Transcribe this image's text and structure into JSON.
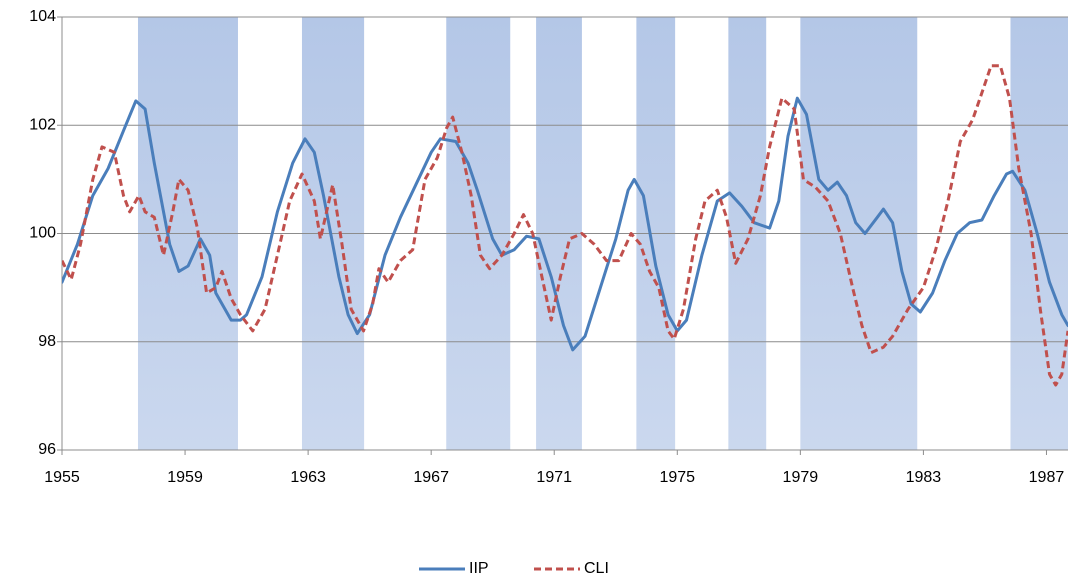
{
  "chart_data": {
    "type": "line",
    "xlim": [
      1955,
      1987.7
    ],
    "xticks": [
      1955,
      1959,
      1963,
      1967,
      1971,
      1975,
      1979,
      1983,
      1987
    ],
    "ylim": [
      96,
      104
    ],
    "yticks": [
      96,
      98,
      100,
      102,
      104
    ],
    "grid": true,
    "shading": [
      [
        1957.47,
        1960.72
      ],
      [
        1962.8,
        1964.82
      ],
      [
        1967.49,
        1969.57
      ],
      [
        1970.41,
        1971.9
      ],
      [
        1973.67,
        1974.93
      ],
      [
        1976.66,
        1977.89
      ],
      [
        1979.0,
        1982.8
      ],
      [
        1985.83,
        1987.7
      ]
    ],
    "shading_color": "#b4c7e7",
    "legend": "bottom",
    "series": [
      {
        "name": "IIP",
        "color": "#4a7ebb",
        "dash": false,
        "x": [
          1955,
          1955.5,
          1956,
          1956.5,
          1957,
          1957.4,
          1957.7,
          1958,
          1958.5,
          1958.8,
          1959.1,
          1959.5,
          1959.8,
          1960,
          1960.5,
          1960.8,
          1961,
          1961.5,
          1962,
          1962.5,
          1962.9,
          1963.2,
          1963.5,
          1964,
          1964.3,
          1964.6,
          1965,
          1965.5,
          1966,
          1966.5,
          1967,
          1967.3,
          1967.8,
          1968.2,
          1968.5,
          1969,
          1969.3,
          1969.7,
          1970.1,
          1970.5,
          1970.9,
          1971.3,
          1971.6,
          1972,
          1972.5,
          1973,
          1973.4,
          1973.6,
          1973.9,
          1974.3,
          1974.7,
          1975,
          1975.3,
          1975.8,
          1976.3,
          1976.7,
          1977.1,
          1977.5,
          1978,
          1978.3,
          1978.6,
          1978.9,
          1979.2,
          1979.6,
          1979.9,
          1980.2,
          1980.5,
          1980.8,
          1981.1,
          1981.5,
          1981.7,
          1982,
          1982.3,
          1982.6,
          1982.9,
          1983.3,
          1983.7,
          1984.1,
          1984.5,
          1984.9,
          1985.3,
          1985.7,
          1985.9,
          1986.3,
          1986.7,
          1987.1,
          1987.5,
          1987.7
        ],
        "values": [
          99.1,
          99.8,
          100.7,
          101.2,
          101.9,
          102.45,
          102.3,
          101.3,
          99.8,
          99.3,
          99.4,
          99.9,
          99.6,
          98.9,
          98.4,
          98.4,
          98.5,
          99.2,
          100.4,
          101.3,
          101.75,
          101.5,
          100.7,
          99.2,
          98.5,
          98.15,
          98.5,
          99.6,
          100.3,
          100.9,
          101.5,
          101.75,
          101.7,
          101.3,
          100.8,
          99.9,
          99.6,
          99.7,
          99.95,
          99.9,
          99.2,
          98.3,
          97.85,
          98.1,
          99.0,
          99.9,
          100.8,
          101.0,
          100.7,
          99.4,
          98.5,
          98.2,
          98.4,
          99.6,
          100.6,
          100.75,
          100.5,
          100.2,
          100.1,
          100.6,
          101.8,
          102.5,
          102.2,
          101.0,
          100.8,
          100.95,
          100.7,
          100.2,
          100.0,
          100.3,
          100.45,
          100.2,
          99.3,
          98.7,
          98.55,
          98.9,
          99.5,
          100.0,
          100.2,
          100.25,
          100.7,
          101.1,
          101.15,
          100.8,
          100.0,
          99.1,
          98.5,
          98.3
        ]
      },
      {
        "name": "CLI",
        "color": "#c0504d",
        "dash": true,
        "x": [
          1955,
          1955.3,
          1955.6,
          1956,
          1956.3,
          1956.7,
          1957,
          1957.2,
          1957.5,
          1957.7,
          1958,
          1958.3,
          1958.6,
          1958.8,
          1959.1,
          1959.4,
          1959.7,
          1960,
          1960.2,
          1960.5,
          1960.8,
          1961.2,
          1961.6,
          1962,
          1962.4,
          1962.8,
          1963.2,
          1963.4,
          1963.8,
          1964.1,
          1964.4,
          1964.8,
          1965.1,
          1965.3,
          1965.6,
          1966,
          1966.4,
          1966.8,
          1967.2,
          1967.5,
          1967.7,
          1968,
          1968.3,
          1968.6,
          1968.9,
          1969.3,
          1969.7,
          1970,
          1970.3,
          1970.6,
          1970.9,
          1971.2,
          1971.5,
          1971.9,
          1972.3,
          1972.7,
          1973.1,
          1973.5,
          1973.8,
          1974.1,
          1974.4,
          1974.7,
          1974.9,
          1975.2,
          1975.6,
          1975.9,
          1976.3,
          1976.6,
          1976.9,
          1977.3,
          1977.7,
          1978,
          1978.4,
          1978.8,
          1979.1,
          1979.5,
          1979.9,
          1980.3,
          1980.7,
          1981,
          1981.3,
          1981.7,
          1982,
          1982.5,
          1983,
          1983.4,
          1983.8,
          1984.2,
          1984.6,
          1984.9,
          1985.2,
          1985.5,
          1985.8,
          1986.1,
          1986.5,
          1986.8,
          1987.1,
          1987.3,
          1987.5,
          1987.7
        ],
        "values": [
          99.5,
          99.15,
          99.8,
          101.0,
          101.6,
          101.5,
          100.7,
          100.4,
          100.7,
          100.4,
          100.3,
          99.6,
          100.4,
          101.0,
          100.8,
          100.1,
          98.9,
          99.0,
          99.3,
          98.8,
          98.5,
          98.2,
          98.6,
          99.6,
          100.6,
          101.1,
          100.6,
          99.9,
          100.9,
          99.8,
          98.6,
          98.2,
          98.7,
          99.35,
          99.1,
          99.5,
          99.7,
          101.0,
          101.4,
          101.95,
          102.15,
          101.5,
          100.7,
          99.6,
          99.35,
          99.6,
          100.0,
          100.35,
          100.0,
          99.2,
          98.4,
          99.2,
          99.9,
          100.0,
          99.8,
          99.5,
          99.5,
          100.0,
          99.8,
          99.3,
          99.0,
          98.2,
          98.05,
          98.6,
          99.9,
          100.6,
          100.8,
          100.3,
          99.45,
          99.9,
          100.7,
          101.6,
          102.5,
          102.3,
          101.0,
          100.85,
          100.6,
          100.0,
          99.0,
          98.3,
          97.8,
          97.9,
          98.1,
          98.6,
          99.0,
          99.7,
          100.6,
          101.7,
          102.1,
          102.6,
          103.1,
          103.1,
          102.5,
          101.2,
          100.0,
          98.6,
          97.4,
          97.2,
          97.4,
          98.2
        ]
      }
    ]
  }
}
